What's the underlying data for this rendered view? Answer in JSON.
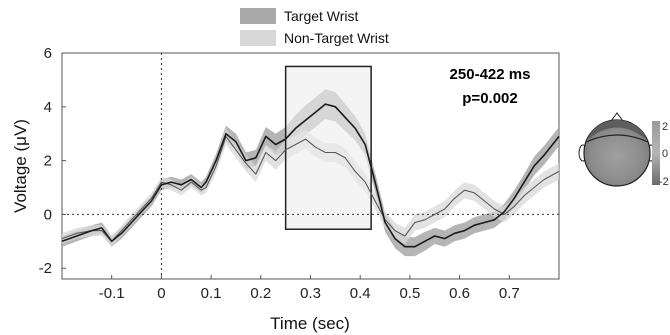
{
  "chart_data": {
    "type": "line",
    "xlabel": "Time (sec)",
    "ylabel": "Voltage (μV)",
    "xlim": [
      -0.2,
      0.8
    ],
    "ylim": [
      -2.4,
      6.0
    ],
    "xticks": [
      -0.1,
      0,
      0.1,
      0.2,
      0.3,
      0.4,
      0.5,
      0.6,
      0.7
    ],
    "xtick_labels": [
      "-0.1",
      "0",
      "0.1",
      "0.2",
      "0.3",
      "0.4",
      "0.5",
      "0.6",
      "0.7"
    ],
    "yticks": [
      -2,
      0,
      2,
      4,
      6
    ],
    "ytick_labels": [
      "-2",
      "0",
      "2",
      "4",
      "6"
    ],
    "legend_position": "top-center",
    "series": [
      {
        "name": "Target Wrist",
        "color": "#1a1a1a",
        "band_color": "#a8a8a8",
        "x": [
          -0.2,
          -0.17,
          -0.14,
          -0.12,
          -0.1,
          -0.08,
          -0.06,
          -0.04,
          -0.02,
          0.0,
          0.02,
          0.04,
          0.06,
          0.08,
          0.09,
          0.11,
          0.13,
          0.15,
          0.17,
          0.19,
          0.21,
          0.23,
          0.25,
          0.27,
          0.29,
          0.31,
          0.33,
          0.35,
          0.37,
          0.39,
          0.41,
          0.43,
          0.45,
          0.47,
          0.49,
          0.51,
          0.53,
          0.55,
          0.57,
          0.59,
          0.61,
          0.63,
          0.65,
          0.67,
          0.69,
          0.71,
          0.73,
          0.75,
          0.77,
          0.8
        ],
        "y": [
          -1.0,
          -0.8,
          -0.6,
          -0.5,
          -1.0,
          -0.7,
          -0.3,
          0.1,
          0.5,
          1.1,
          1.2,
          1.1,
          1.3,
          1.0,
          1.2,
          2.0,
          3.0,
          2.7,
          2.0,
          2.1,
          2.9,
          2.6,
          2.8,
          3.2,
          3.5,
          3.8,
          4.1,
          4.0,
          3.6,
          3.2,
          2.6,
          1.2,
          -0.3,
          -0.9,
          -1.2,
          -1.2,
          -1.0,
          -0.8,
          -0.9,
          -0.7,
          -0.6,
          -0.4,
          -0.3,
          -0.2,
          0.1,
          0.6,
          1.2,
          1.8,
          2.2,
          2.9
        ],
        "band": [
          0.2,
          0.2,
          0.2,
          0.2,
          0.2,
          0.2,
          0.2,
          0.2,
          0.2,
          0.2,
          0.2,
          0.2,
          0.2,
          0.2,
          0.2,
          0.25,
          0.3,
          0.3,
          0.3,
          0.3,
          0.35,
          0.4,
          0.45,
          0.5,
          0.55,
          0.55,
          0.55,
          0.55,
          0.5,
          0.45,
          0.4,
          0.35,
          0.35,
          0.35,
          0.35,
          0.35,
          0.35,
          0.3,
          0.3,
          0.3,
          0.3,
          0.3,
          0.3,
          0.3,
          0.3,
          0.3,
          0.3,
          0.35,
          0.35,
          0.35
        ]
      },
      {
        "name": "Non-Target Wrist",
        "color": "#5a5a5a",
        "band_color": "#d8d8d8",
        "x": [
          -0.2,
          -0.17,
          -0.14,
          -0.12,
          -0.1,
          -0.08,
          -0.06,
          -0.04,
          -0.02,
          0.0,
          0.02,
          0.04,
          0.06,
          0.08,
          0.09,
          0.11,
          0.13,
          0.15,
          0.17,
          0.19,
          0.21,
          0.23,
          0.25,
          0.27,
          0.29,
          0.31,
          0.33,
          0.35,
          0.37,
          0.39,
          0.41,
          0.43,
          0.45,
          0.47,
          0.49,
          0.51,
          0.53,
          0.55,
          0.57,
          0.59,
          0.61,
          0.63,
          0.65,
          0.67,
          0.69,
          0.71,
          0.73,
          0.75,
          0.77,
          0.8
        ],
        "y": [
          -0.9,
          -0.7,
          -0.6,
          -0.6,
          -1.0,
          -0.6,
          -0.2,
          0.2,
          0.6,
          1.2,
          1.1,
          0.9,
          1.2,
          0.9,
          1.0,
          1.8,
          2.9,
          2.4,
          1.9,
          1.5,
          2.3,
          2.0,
          2.4,
          2.6,
          2.8,
          2.5,
          2.3,
          2.3,
          2.1,
          1.6,
          1.2,
          0.5,
          -0.2,
          -0.6,
          -0.8,
          -0.3,
          -0.2,
          0.0,
          0.2,
          0.6,
          0.9,
          0.8,
          0.5,
          0.2,
          0.0,
          0.3,
          0.7,
          1.0,
          1.3,
          1.6
        ],
        "band": [
          0.2,
          0.2,
          0.2,
          0.2,
          0.2,
          0.2,
          0.2,
          0.2,
          0.2,
          0.2,
          0.2,
          0.2,
          0.2,
          0.2,
          0.2,
          0.25,
          0.3,
          0.3,
          0.3,
          0.3,
          0.3,
          0.35,
          0.35,
          0.35,
          0.35,
          0.35,
          0.35,
          0.35,
          0.35,
          0.35,
          0.35,
          0.3,
          0.3,
          0.3,
          0.3,
          0.3,
          0.3,
          0.3,
          0.3,
          0.3,
          0.3,
          0.3,
          0.3,
          0.3,
          0.3,
          0.3,
          0.3,
          0.3,
          0.3,
          0.3
        ]
      }
    ],
    "highlight_window": {
      "x_start": 0.25,
      "x_end": 0.422,
      "y_bottom": -0.55,
      "y_top": 5.5
    },
    "annotation": {
      "line1": "250-422 ms",
      "line2": "p=0.002"
    },
    "colorbar": {
      "labels": [
        "2",
        "0",
        "-2"
      ]
    }
  }
}
